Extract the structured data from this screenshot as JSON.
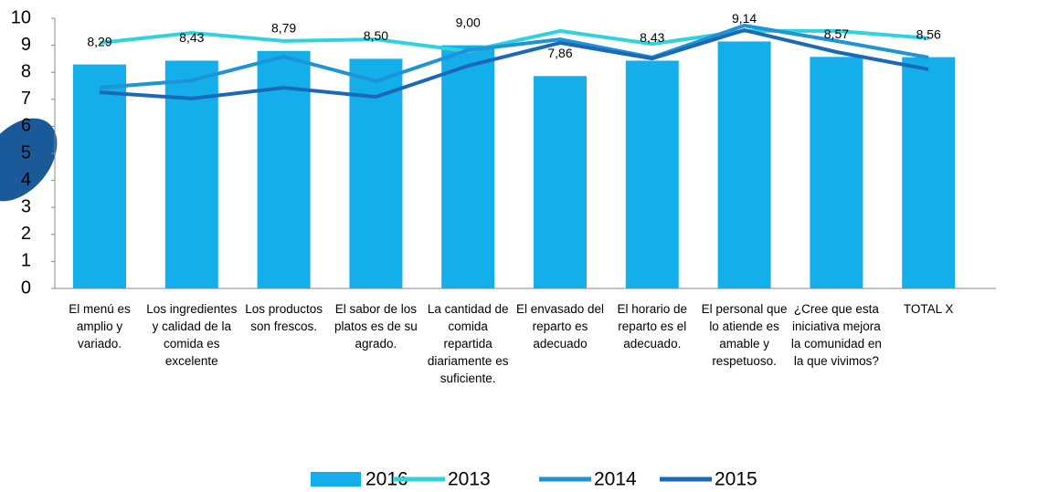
{
  "chart_data": {
    "type": "bar_line",
    "categories": [
      "El menú es amplio y variado.",
      "Los ingredientes y calidad de la comida es excelente",
      "Los productos son frescos.",
      "El sabor de los platos es de su agrado.",
      "La cantidad de comida repartida diariamente es suficiente.",
      "El envasado del reparto es adecuado",
      "El horario de reparto es el adecuado.",
      "El personal que lo atiende es amable y respetuoso.",
      "¿Cree que esta iniciativa mejora la comunidad en la que vivimos?",
      "TOTAL X"
    ],
    "series": [
      {
        "name": "2016",
        "kind": "bar",
        "color": "#14aeea",
        "values": [
          8.29,
          8.43,
          8.79,
          8.5,
          9.0,
          7.86,
          8.43,
          9.14,
          8.57,
          8.56
        ],
        "value_labels": [
          "8,29",
          "8,43",
          "8,79",
          "8,50",
          "9,00",
          "7,86",
          "8,43",
          "9,14",
          "8,57",
          "8,56"
        ]
      },
      {
        "name": "2013",
        "kind": "line",
        "color": "#2fd3de",
        "values": [
          9.09,
          9.46,
          9.16,
          9.22,
          8.78,
          9.53,
          9.05,
          9.53,
          9.53,
          9.26
        ]
      },
      {
        "name": "2014",
        "kind": "line",
        "color": "#1e93d6",
        "values": [
          7.43,
          7.7,
          8.58,
          7.67,
          8.82,
          9.22,
          8.55,
          9.73,
          9.16,
          8.55
        ]
      },
      {
        "name": "2015",
        "kind": "line",
        "color": "#1b68b6",
        "values": [
          7.26,
          7.03,
          7.43,
          7.09,
          8.24,
          9.09,
          8.51,
          9.56,
          8.75,
          8.11
        ]
      }
    ],
    "ylim": [
      0,
      10
    ],
    "yticks": [
      0,
      1,
      2,
      3,
      4,
      5,
      6,
      7,
      8,
      9,
      10
    ],
    "legend": "bottom"
  }
}
